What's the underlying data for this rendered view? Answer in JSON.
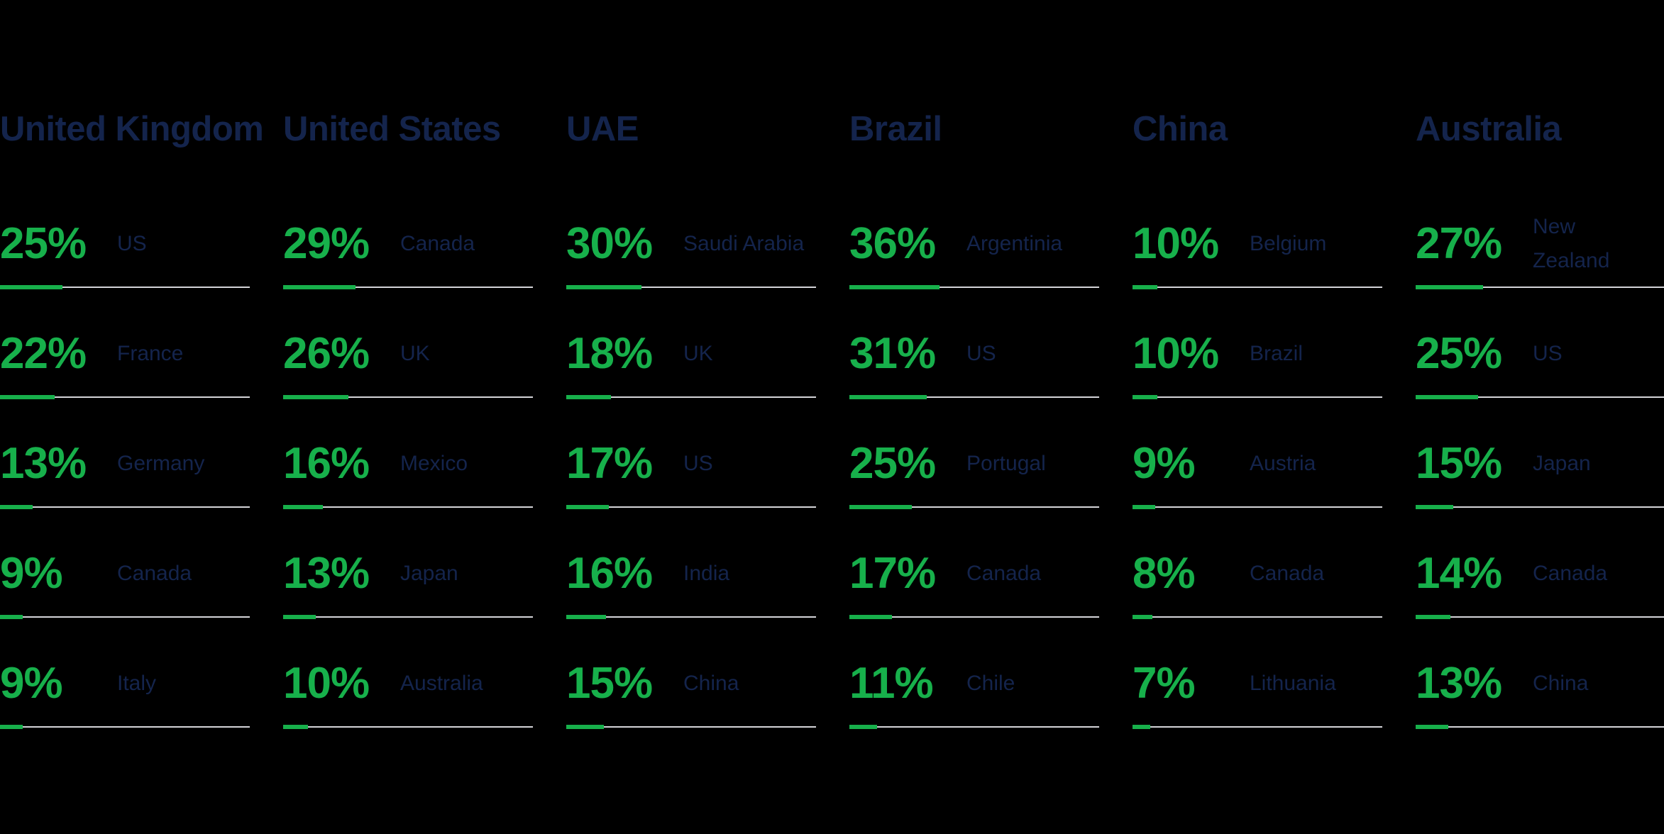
{
  "background_color": "#000000",
  "colors": {
    "green": "#17b04b",
    "navy": "#14244c",
    "track_gray": "#d5d5d9"
  },
  "chart_data": {
    "type": "bar",
    "subtype": "small-multiples-progress-bars",
    "unit": "%",
    "value_scale_max": 100,
    "grid": "off",
    "legend_position": "none",
    "groups": [
      {
        "title": "United Kingdom",
        "bars": [
          {
            "label": "US",
            "value": 25
          },
          {
            "label": "France",
            "value": 22
          },
          {
            "label": "Germany",
            "value": 13
          },
          {
            "label": "Canada",
            "value": 9
          },
          {
            "label": "Italy",
            "value": 9
          }
        ]
      },
      {
        "title": "United States",
        "bars": [
          {
            "label": "Canada",
            "value": 29
          },
          {
            "label": "UK",
            "value": 26
          },
          {
            "label": "Mexico",
            "value": 16
          },
          {
            "label": "Japan",
            "value": 13
          },
          {
            "label": "Australia",
            "value": 10
          }
        ]
      },
      {
        "title": "UAE",
        "bars": [
          {
            "label": "Saudi Arabia",
            "value": 30
          },
          {
            "label": "UK",
            "value": 18
          },
          {
            "label": "US",
            "value": 17
          },
          {
            "label": "India",
            "value": 16
          },
          {
            "label": "China",
            "value": 15
          }
        ]
      },
      {
        "title": "Brazil",
        "bars": [
          {
            "label": "Argentinia",
            "value": 36
          },
          {
            "label": "US",
            "value": 31
          },
          {
            "label": "Portugal",
            "value": 25
          },
          {
            "label": "Canada",
            "value": 17
          },
          {
            "label": "Chile",
            "value": 11
          }
        ]
      },
      {
        "title": "China",
        "bars": [
          {
            "label": "Belgium",
            "value": 10
          },
          {
            "label": "Brazil",
            "value": 10
          },
          {
            "label": "Austria",
            "value": 9
          },
          {
            "label": "Canada",
            "value": 8
          },
          {
            "label": "Lithuania",
            "value": 7
          }
        ]
      },
      {
        "title": "Australia",
        "bars": [
          {
            "label": "New Zealand",
            "value": 27
          },
          {
            "label": "US",
            "value": 25
          },
          {
            "label": "Japan",
            "value": 15
          },
          {
            "label": "Canada",
            "value": 14
          },
          {
            "label": "China",
            "value": 13
          }
        ]
      }
    ]
  }
}
